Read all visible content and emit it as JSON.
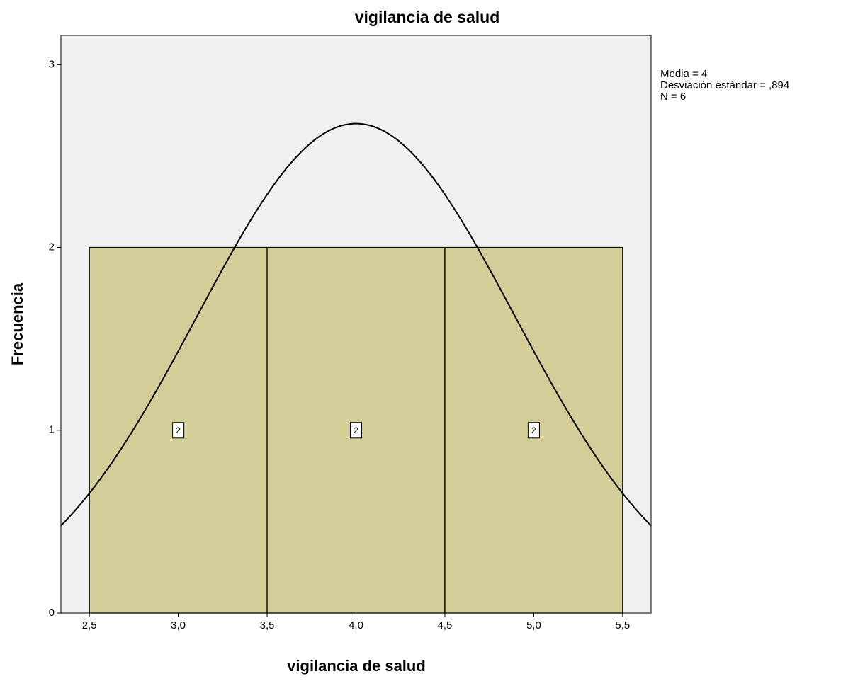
{
  "chart_data": {
    "type": "histogram",
    "title": "vigilancia de salud",
    "x_label": "vigilancia de salud",
    "y_label": "Frecuencia",
    "bins": [
      2.5,
      3.5,
      4.5,
      5.5
    ],
    "values": [
      2,
      2,
      2
    ],
    "color": "#d3ce97",
    "xlim": [
      2.34,
      5.66
    ],
    "ylim": [
      0,
      3.16
    ],
    "xticks": [
      {
        "value": 2.5,
        "label": "2,5"
      },
      {
        "value": 3,
        "label": "3,0"
      },
      {
        "value": 3.5,
        "label": "3,5"
      },
      {
        "value": 4,
        "label": "4,0"
      },
      {
        "value": 4.5,
        "label": "4,5"
      },
      {
        "value": 5,
        "label": "5,0"
      },
      {
        "value": 5.5,
        "label": "5,5"
      }
    ],
    "yticks": [
      0,
      1,
      2,
      3
    ],
    "stats": [
      "Media = 4",
      "Desviación estándar = ,894",
      "N = 6"
    ],
    "normal_curve": {
      "mean": 4,
      "sd": 0.894,
      "n": 6
    }
  }
}
